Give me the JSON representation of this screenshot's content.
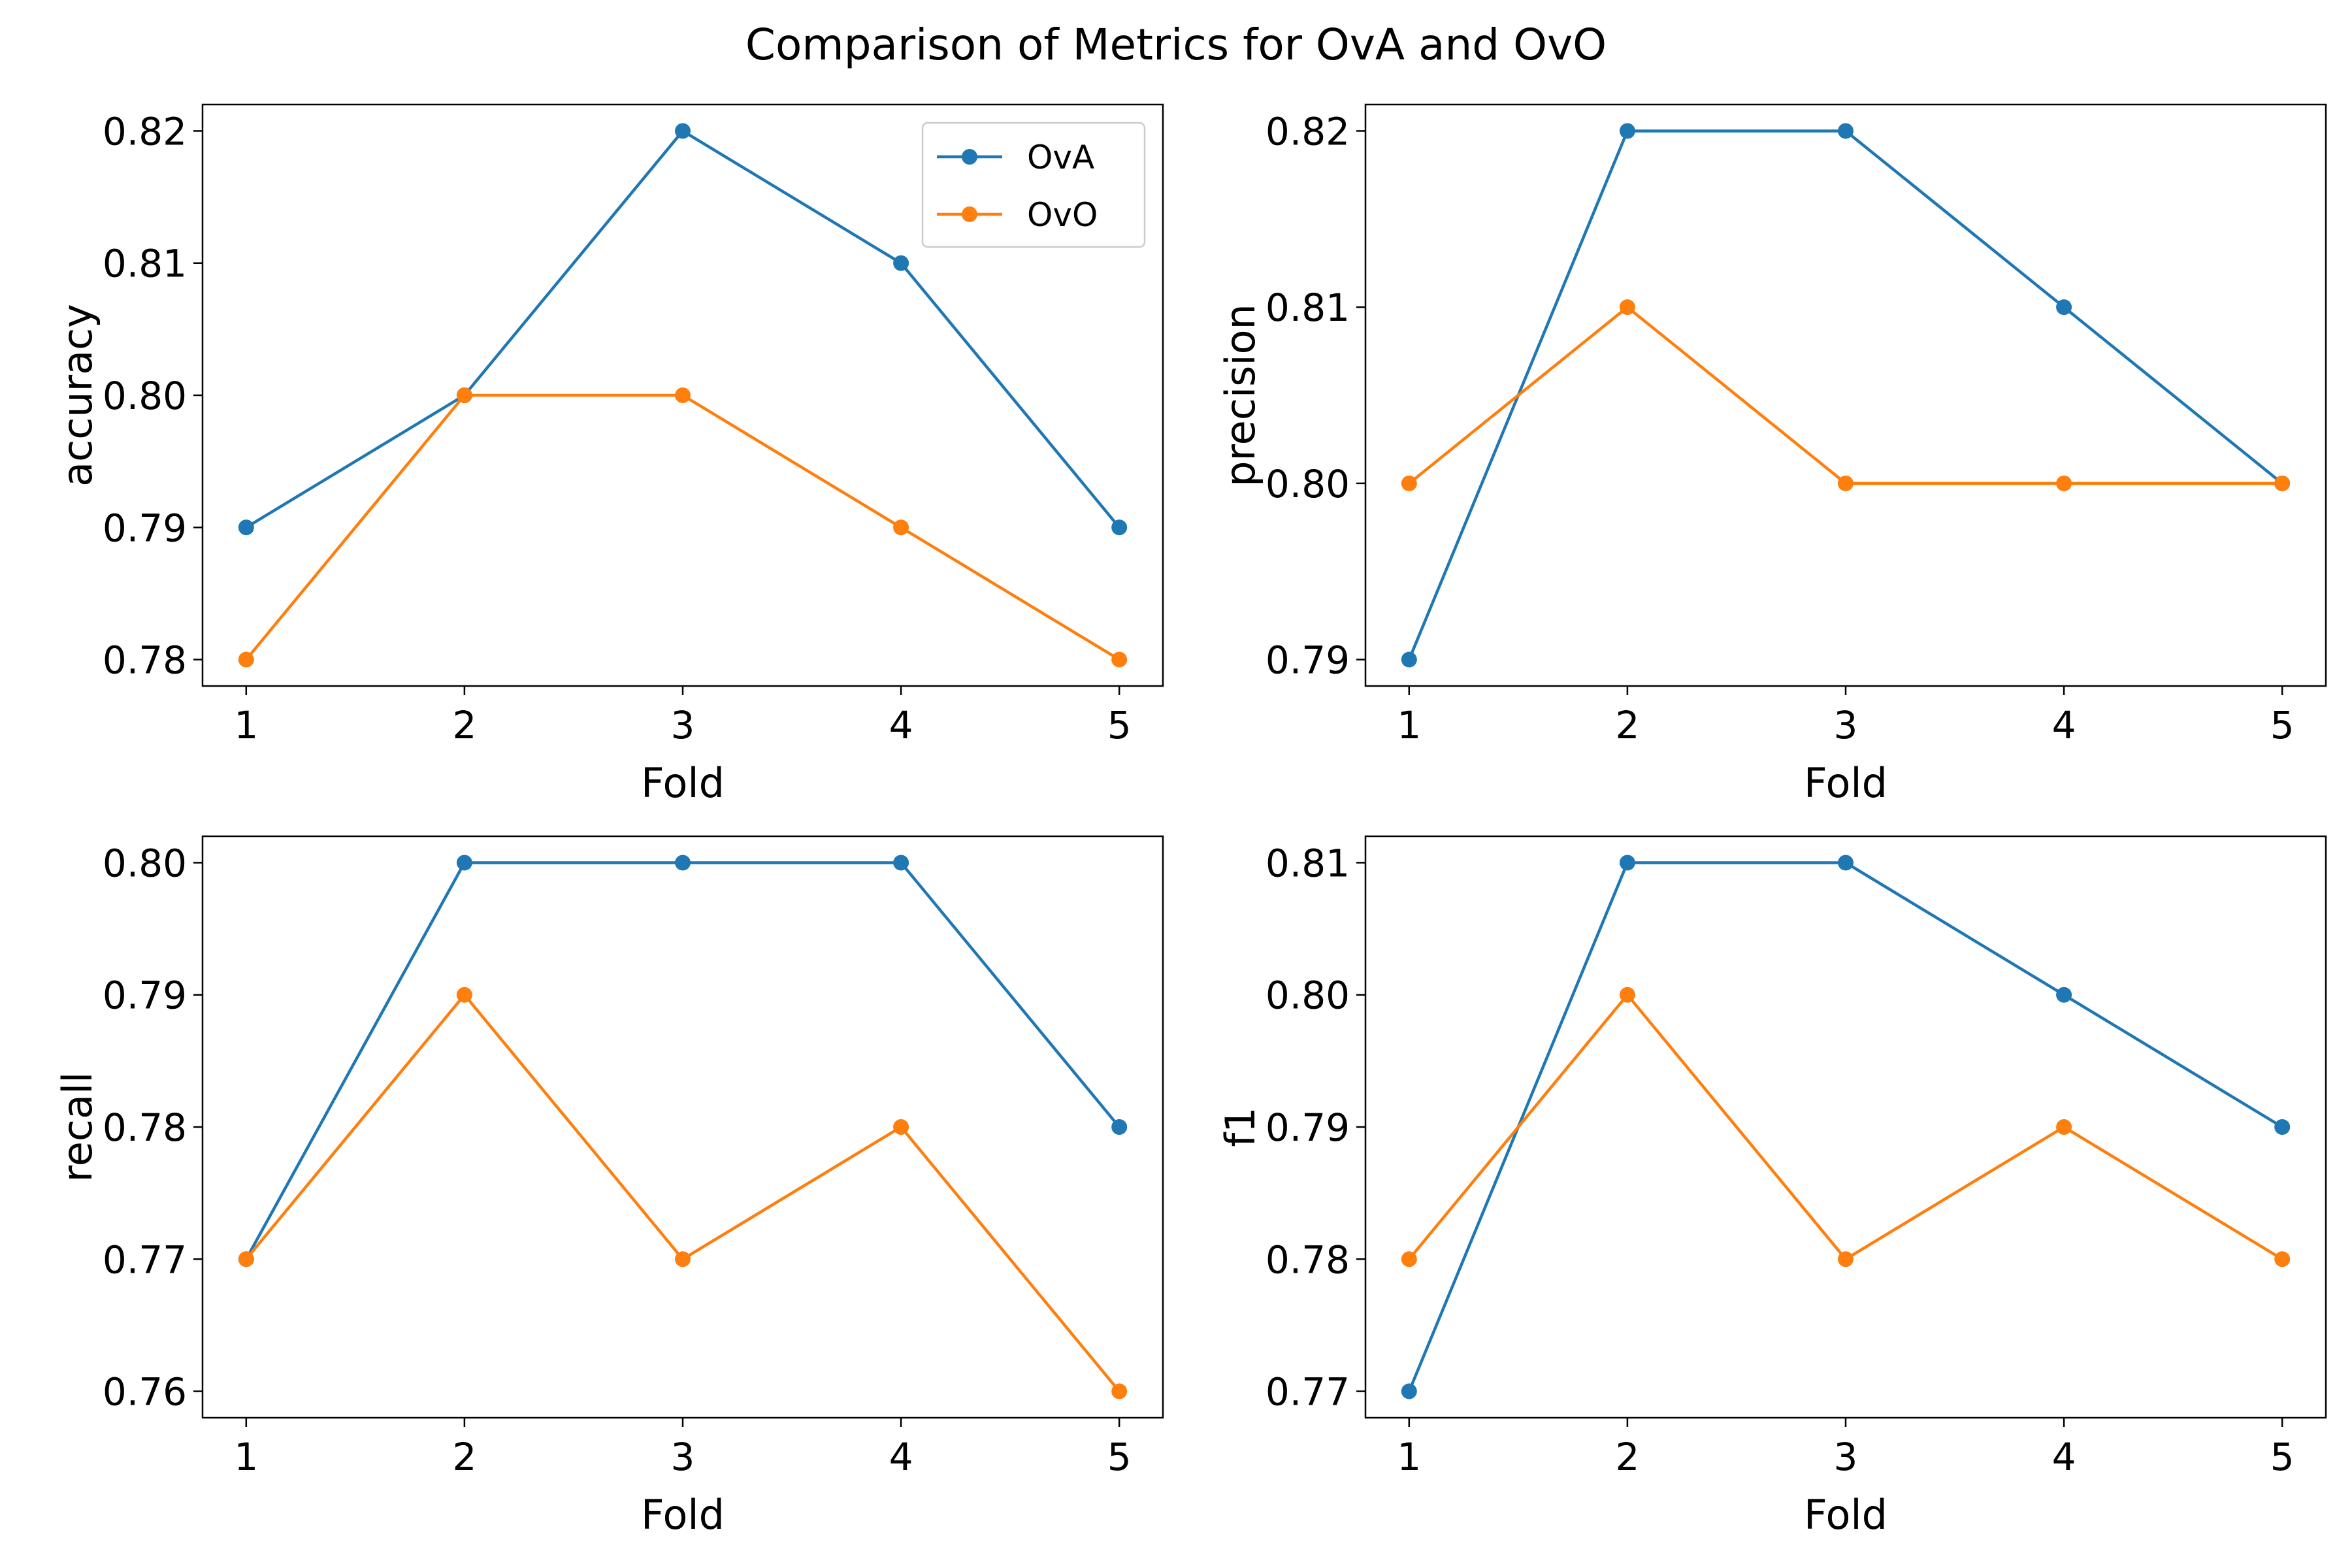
{
  "figure": {
    "title": "Comparison of Metrics for OvA and OvO"
  },
  "colors": {
    "OvA": "#1f77b4",
    "OvO": "#ff7f0e"
  },
  "chart_data": [
    {
      "type": "line",
      "xlabel": "Fold",
      "ylabel": "accuracy",
      "x": [
        1,
        2,
        3,
        4,
        5
      ],
      "ylim": [
        0.778,
        0.822
      ],
      "yticks": [
        "0.78",
        "0.79",
        "0.80",
        "0.81",
        "0.82"
      ],
      "legend": "top-right",
      "series": [
        {
          "name": "OvA",
          "values": [
            0.79,
            0.8,
            0.82,
            0.81,
            0.79
          ]
        },
        {
          "name": "OvO",
          "values": [
            0.78,
            0.8,
            0.8,
            0.79,
            0.78
          ]
        }
      ]
    },
    {
      "type": "line",
      "xlabel": "Fold",
      "ylabel": "precision",
      "x": [
        1,
        2,
        3,
        4,
        5
      ],
      "ylim": [
        0.7885,
        0.8215
      ],
      "yticks": [
        "0.79",
        "0.80",
        "0.81",
        "0.82"
      ],
      "series": [
        {
          "name": "OvA",
          "values": [
            0.79,
            0.82,
            0.82,
            0.81,
            0.8
          ]
        },
        {
          "name": "OvO",
          "values": [
            0.8,
            0.81,
            0.8,
            0.8,
            0.8
          ]
        }
      ]
    },
    {
      "type": "line",
      "xlabel": "Fold",
      "ylabel": "recall",
      "x": [
        1,
        2,
        3,
        4,
        5
      ],
      "ylim": [
        0.758,
        0.802
      ],
      "yticks": [
        "0.76",
        "0.77",
        "0.78",
        "0.79",
        "0.80"
      ],
      "series": [
        {
          "name": "OvA",
          "values": [
            0.77,
            0.8,
            0.8,
            0.8,
            0.78
          ]
        },
        {
          "name": "OvO",
          "values": [
            0.77,
            0.79,
            0.77,
            0.78,
            0.76
          ]
        }
      ]
    },
    {
      "type": "line",
      "xlabel": "Fold",
      "ylabel": "f1",
      "x": [
        1,
        2,
        3,
        4,
        5
      ],
      "ylim": [
        0.768,
        0.812
      ],
      "yticks": [
        "0.77",
        "0.78",
        "0.79",
        "0.80",
        "0.81"
      ],
      "series": [
        {
          "name": "OvA",
          "values": [
            0.77,
            0.81,
            0.81,
            0.8,
            0.79
          ]
        },
        {
          "name": "OvO",
          "values": [
            0.78,
            0.8,
            0.78,
            0.79,
            0.78
          ]
        }
      ]
    }
  ]
}
